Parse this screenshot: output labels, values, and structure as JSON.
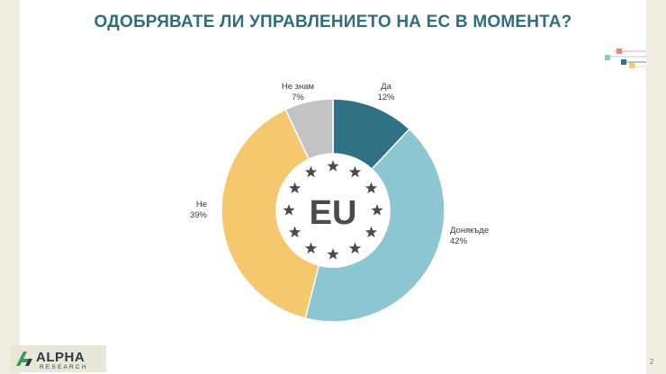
{
  "title": "ОДОБРЯВАТЕ ЛИ УПРАВЛЕНИЕТО НА ЕС В МОМЕНТА?",
  "center_label": "EU",
  "page_number": "2",
  "logo": {
    "name": "ALPHA",
    "sub": "RESEARCH"
  },
  "colors": {
    "title": "#2e6f7e",
    "background_side": "#efede0"
  },
  "chart_data": {
    "type": "pie",
    "donut": true,
    "slices": [
      {
        "label": "Да",
        "value": 12,
        "value_label": "12%",
        "color": "#2e7284"
      },
      {
        "label": "Донякъде",
        "value": 42,
        "value_label": "42%",
        "color": "#8cc6d3"
      },
      {
        "label": "Не",
        "value": 39,
        "value_label": "39%",
        "color": "#f6c86e"
      },
      {
        "label": "Не знам",
        "value": 7,
        "value_label": "7%",
        "color": "#c3c3c3"
      }
    ]
  }
}
